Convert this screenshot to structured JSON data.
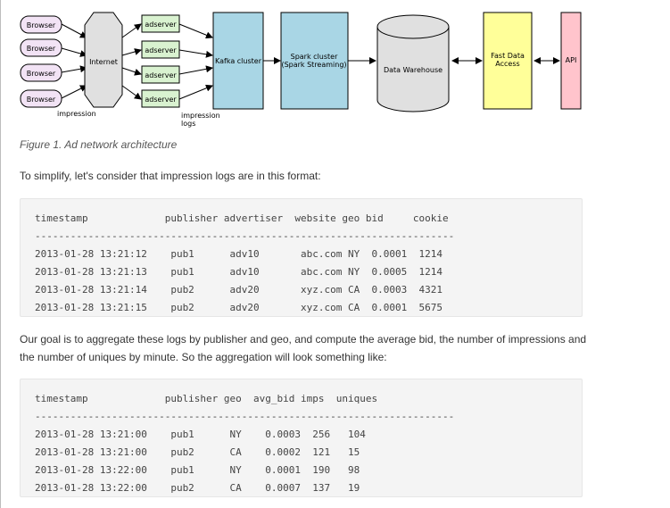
{
  "diagram": {
    "browsers": [
      "Browser",
      "Browser",
      "Browser",
      "Browser"
    ],
    "internet": "Internet",
    "adservers": [
      "adserver",
      "adserver",
      "adserver",
      "adserver"
    ],
    "kafka": "Kafka cluster",
    "spark_line1": "Spark cluster",
    "spark_line2": "(Spark Streaming)",
    "warehouse": "Data Warehouse",
    "fast_line1": "Fast Data",
    "fast_line2": "Access",
    "api": "API",
    "impression_label": "impression",
    "impression_logs_line1": "impression",
    "impression_logs_line2": "logs",
    "colors": {
      "browser_fill": "#f2e3f5",
      "internet_fill": "#e0e0e0",
      "adserver_fill": "#d9f2d0",
      "kafka_fill": "#a9d6e5",
      "spark_fill": "#a9d6e5",
      "warehouse_fill": "#e0e0e0",
      "fast_fill": "#ffff99",
      "api_fill": "#ffc4cc"
    }
  },
  "caption": "Figure 1. Ad network architecture",
  "intro_text": "To simplify, let's consider that impression logs are in this format:",
  "table1": {
    "header": "timestamp             publisher advertiser  website geo bid     cookie",
    "separator": "-----------------------------------------------------------------------",
    "rows": [
      "2013-01-28 13:21:12    pub1      adv10       abc.com NY  0.0001  1214",
      "2013-01-28 13:21:13    pub1      adv10       abc.com NY  0.0005  1214",
      "2013-01-28 13:21:14    pub2      adv20       xyz.com CA  0.0003  4321",
      "2013-01-28 13:21:15    pub2      adv20       xyz.com CA  0.0001  5675"
    ]
  },
  "goal_text": "Our goal is to aggregate these logs by publisher and geo, and compute the average bid, the number of impressions and the number of uniques by minute. So the aggregation will look something like:",
  "table2": {
    "header": "timestamp             publisher geo  avg_bid imps  uniques",
    "separator": "-----------------------------------------------------------------------",
    "rows": [
      "2013-01-28 13:21:00    pub1      NY    0.0003  256   104",
      "2013-01-28 13:21:00    pub2      CA    0.0002  121   15",
      "2013-01-28 13:22:00    pub1      NY    0.0001  190   98",
      "2013-01-28 13:22:00    pub2      CA    0.0007  137   19"
    ]
  }
}
